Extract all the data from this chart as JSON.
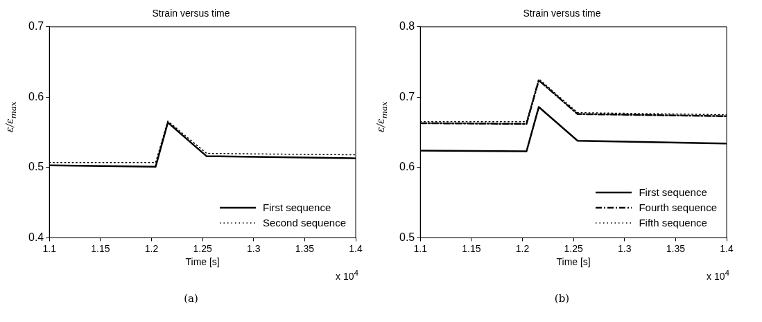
{
  "chart_data": [
    {
      "type": "line",
      "title": "Strain versus time",
      "xlabel": "Time [s]",
      "ylabel": "ε/ε$_{max}$",
      "annotations": [
        "x 10$^{4}$",
        "(a)"
      ],
      "xlim": [
        1.1,
        1.4
      ],
      "xticks": [
        1.1,
        1.15,
        1.2,
        1.25,
        1.3,
        1.35,
        1.4
      ],
      "ylim": [
        0.4,
        0.7
      ],
      "yticks": [
        0.4,
        0.5,
        0.6,
        0.7
      ],
      "grid": false,
      "legend": "bottom right",
      "x": [
        1.1,
        1.204,
        1.216,
        1.254,
        1.4
      ],
      "series": [
        {
          "name": "First sequence",
          "color": "#000000",
          "line_style": "solid",
          "values": [
            0.503,
            0.501,
            0.564,
            0.516,
            0.513
          ]
        },
        {
          "name": "Second sequence",
          "color": "#000000",
          "line_style": "dotted",
          "values": [
            0.507,
            0.507,
            0.566,
            0.52,
            0.518
          ]
        }
      ]
    },
    {
      "type": "line",
      "title": "Strain versus time",
      "xlabel": "Time [s]",
      "ylabel": "ε/ε$_{max}$",
      "annotations": [
        "x 10$^{4}$",
        "(b)"
      ],
      "xlim": [
        1.1,
        1.4
      ],
      "xticks": [
        1.1,
        1.15,
        1.2,
        1.25,
        1.3,
        1.35,
        1.4
      ],
      "ylim": [
        0.5,
        0.8
      ],
      "yticks": [
        0.5,
        0.6,
        0.7,
        0.8
      ],
      "grid": false,
      "legend": "bottom right",
      "x": [
        1.1,
        1.204,
        1.216,
        1.254,
        1.4
      ],
      "series": [
        {
          "name": "First sequence",
          "color": "#000000",
          "line_style": "solid",
          "values": [
            0.624,
            0.623,
            0.686,
            0.638,
            0.634
          ]
        },
        {
          "name": "Fourth sequence",
          "color": "#000000",
          "line_style": "dashed",
          "values": [
            0.663,
            0.662,
            0.724,
            0.676,
            0.673
          ]
        },
        {
          "name": "Fifth sequence",
          "color": "#000000",
          "line_style": "dotted",
          "values": [
            0.665,
            0.665,
            0.726,
            0.678,
            0.675
          ]
        }
      ]
    }
  ]
}
